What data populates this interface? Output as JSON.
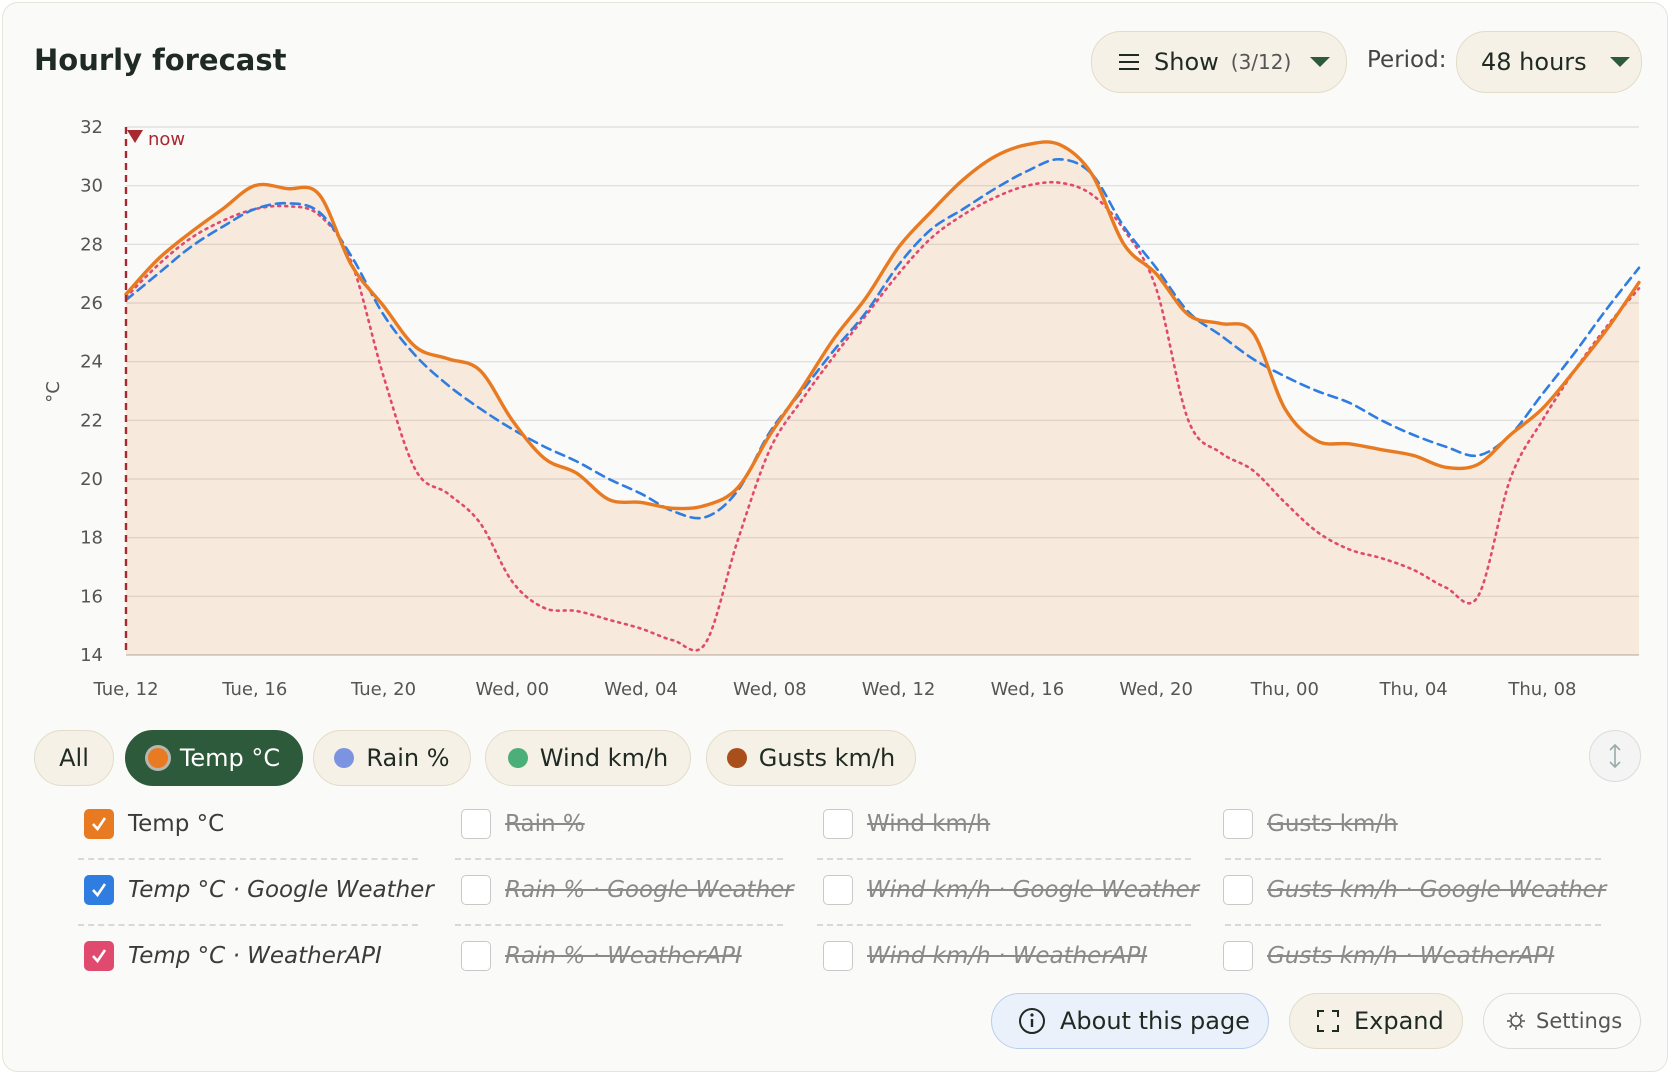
{
  "header": {
    "title": "Hourly forecast",
    "show": "Show",
    "show_count": "(3/12)",
    "period_label": "Period:",
    "period": "48 hours"
  },
  "chart_data": {
    "type": "line",
    "y_label": "°C",
    "annotation": {
      "text": "now",
      "x_index": 0
    },
    "categories": [
      "Tue, 12",
      null,
      null,
      null,
      "Tue, 16",
      null,
      null,
      null,
      "Tue, 20",
      null,
      null,
      null,
      "Wed, 00",
      null,
      null,
      null,
      "Wed, 04",
      null,
      null,
      null,
      "Wed, 08",
      null,
      null,
      null,
      "Wed, 12",
      null,
      null,
      null,
      "Wed, 16",
      null,
      null,
      null,
      "Wed, 20",
      null,
      null,
      null,
      "Thu, 00",
      null,
      null,
      null,
      "Thu, 04",
      null,
      null,
      null,
      "Thu, 08",
      null,
      null,
      null
    ],
    "series": [
      {
        "name": "Temp °C",
        "color": "#e87a22",
        "style": "solid",
        "area": true,
        "values": [
          26.3,
          27.5,
          28.4,
          29.2,
          30.0,
          29.9,
          29.7,
          27.3,
          25.9,
          24.5,
          24.1,
          23.7,
          22.0,
          20.7,
          20.2,
          19.3,
          19.2,
          19.0,
          19.1,
          19.7,
          21.5,
          23.1,
          24.8,
          26.2,
          27.9,
          29.1,
          30.2,
          31.0,
          31.4,
          31.4,
          30.4,
          28.0,
          27.0,
          25.6,
          25.3,
          25.0,
          22.4,
          21.3,
          21.2,
          21.0,
          20.8,
          20.4,
          20.5,
          21.5,
          22.4,
          23.7,
          25.1,
          26.7
        ]
      },
      {
        "name": "Temp °C · Google Weather",
        "color": "#2f7de1",
        "style": "dashed",
        "area": false,
        "values": [
          26.1,
          27.0,
          27.9,
          28.6,
          29.2,
          29.4,
          29.1,
          27.6,
          25.6,
          24.2,
          23.2,
          22.4,
          21.7,
          21.1,
          20.6,
          20.0,
          19.5,
          18.9,
          18.7,
          19.6,
          21.6,
          23.0,
          24.4,
          25.7,
          27.3,
          28.5,
          29.2,
          29.9,
          30.5,
          30.9,
          30.4,
          28.6,
          27.2,
          25.7,
          24.9,
          24.1,
          23.5,
          23.0,
          22.6,
          22.0,
          21.5,
          21.1,
          20.8,
          21.5,
          22.9,
          24.3,
          25.8,
          27.2
        ]
      },
      {
        "name": "Temp °C · WeatherAPI",
        "color": "#e04a6f",
        "style": "dotted",
        "area": false,
        "values": [
          26.2,
          27.3,
          28.2,
          28.8,
          29.2,
          29.3,
          29.0,
          27.4,
          23.5,
          20.3,
          19.5,
          18.5,
          16.5,
          15.6,
          15.5,
          15.2,
          14.9,
          14.5,
          14.4,
          17.9,
          21.0,
          22.7,
          24.2,
          25.6,
          27.0,
          28.2,
          29.0,
          29.6,
          30.0,
          30.1,
          29.7,
          28.5,
          26.5,
          22.0,
          20.9,
          20.3,
          19.2,
          18.2,
          17.6,
          17.3,
          16.9,
          16.3,
          16.0,
          20.0,
          22.0,
          23.7,
          25.2,
          26.5
        ]
      }
    ],
    "ylim": [
      14,
      32
    ],
    "yticks": [
      14,
      16,
      18,
      20,
      22,
      24,
      26,
      28,
      30,
      32
    ],
    "grid": true
  },
  "chips": [
    {
      "label": "All",
      "dot": null,
      "active": false
    },
    {
      "label": "Temp °C",
      "dot": "#e87a22",
      "active": true
    },
    {
      "label": "Rain %",
      "dot": "#7b93e0",
      "active": false
    },
    {
      "label": "Wind km/h",
      "dot": "#4caf78",
      "active": false
    },
    {
      "label": "Gusts km/h",
      "dot": "#a84f1c",
      "active": false
    }
  ],
  "filters": [
    {
      "items": [
        "Rain %",
        "Rain % · Google Weather",
        "Rain % · WeatherAPI"
      ],
      "checked": false
    },
    {
      "items": [
        "Wind km/h",
        "Wind km/h · Google Weather",
        "Wind km/h · WeatherAPI"
      ],
      "checked": false
    },
    {
      "items": [
        "Gusts km/h",
        "Gusts km/h · Google Weather",
        "Gusts km/h · WeatherAPI"
      ],
      "checked": false
    }
  ],
  "buttons": {
    "about": "About this page",
    "expand": "Expand",
    "settings": "Settings"
  }
}
